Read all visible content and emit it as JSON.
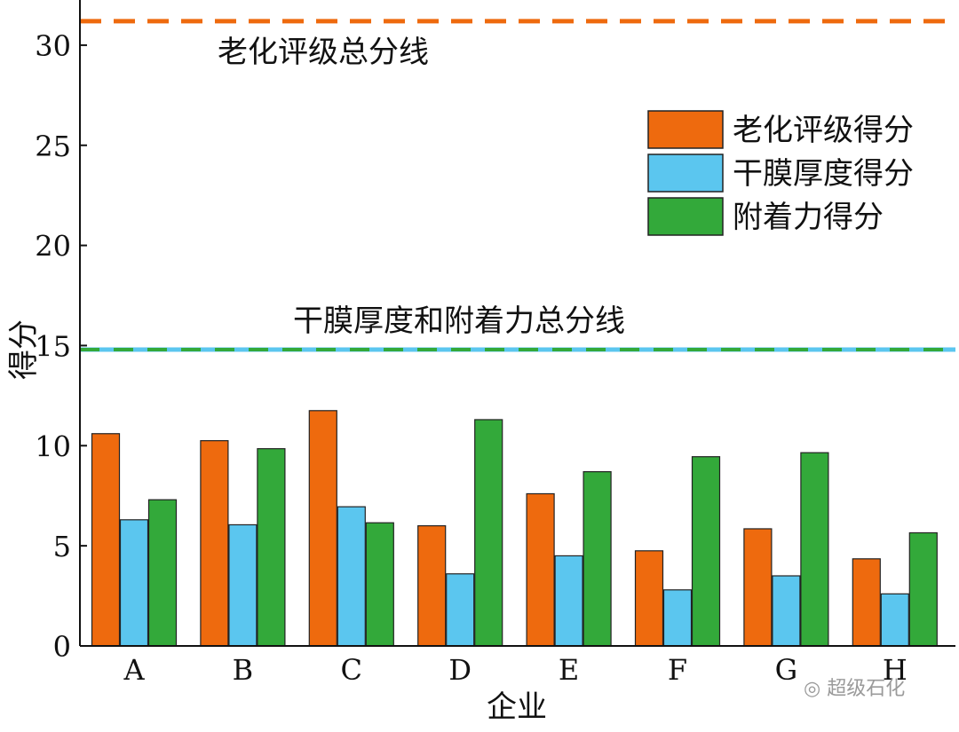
{
  "chart_data": {
    "type": "bar",
    "xlabel": "企业",
    "ylabel": "得分",
    "categories": [
      "A",
      "B",
      "C",
      "D",
      "E",
      "F",
      "G",
      "H"
    ],
    "ylim": [
      0,
      31.5
    ],
    "yticks": [
      0,
      5,
      10,
      15,
      20,
      25,
      30
    ],
    "legend_position": "top-right",
    "series": [
      {
        "name": "老化评级得分",
        "color": "#ee6a0e",
        "values": [
          10.6,
          10.25,
          11.75,
          6.0,
          7.6,
          4.75,
          5.85,
          4.35
        ]
      },
      {
        "name": "干膜厚度得分",
        "color": "#5bc6ef",
        "values": [
          6.3,
          6.05,
          6.95,
          3.6,
          4.5,
          2.8,
          3.5,
          2.6
        ]
      },
      {
        "name": "附着力得分",
        "color": "#33a93a",
        "values": [
          7.3,
          9.85,
          6.15,
          11.3,
          8.7,
          9.45,
          9.65,
          5.65
        ]
      }
    ],
    "reference_lines": [
      {
        "label": "老化评级总分线",
        "value": 31.2,
        "colors": [
          "#ee6a0e"
        ]
      },
      {
        "label": "干膜厚度和附着力总分线",
        "value": 14.8,
        "colors": [
          "#5bc6ef",
          "#33a93a"
        ]
      }
    ]
  },
  "watermark": "超级石化"
}
